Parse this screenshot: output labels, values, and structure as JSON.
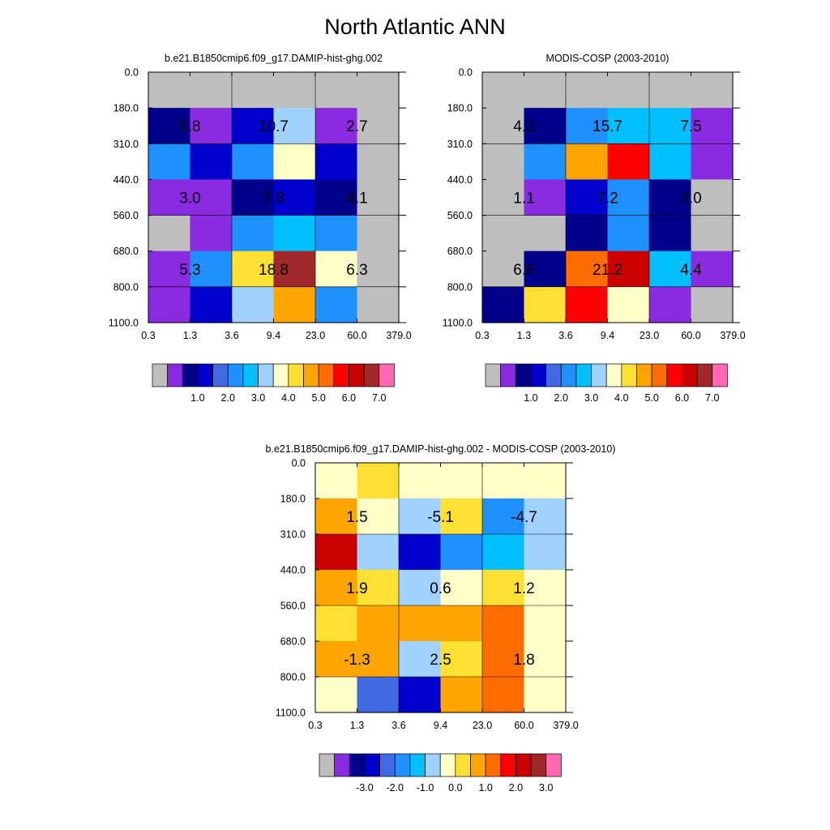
{
  "title": "North Atlantic ANN",
  "chart_data": [
    {
      "type": "heatmap",
      "title": "b.e21.B1850cmip6.f09_g17.DAMIP-hist-ghg.002",
      "xticks": [
        "0.3",
        "1.3",
        "3.6",
        "9.4",
        "23.0",
        "60.0",
        "379.0"
      ],
      "yticks": [
        "0.0",
        "180.0",
        "310.0",
        "440.0",
        "560.0",
        "680.0",
        "800.0",
        "1100.0"
      ],
      "colorbar_labels": [
        "1.0",
        "2.0",
        "3.0",
        "4.0",
        "5.0",
        "6.0",
        "7.0"
      ],
      "grid": [
        [
          0,
          0,
          0,
          0,
          0,
          0
        ],
        [
          2,
          1,
          3,
          7,
          1,
          0
        ],
        [
          5,
          3,
          5,
          8,
          3,
          0
        ],
        [
          1,
          1,
          2,
          3,
          2,
          0
        ],
        [
          0,
          1,
          5,
          6,
          5,
          0
        ],
        [
          1,
          5,
          9,
          14,
          8,
          0
        ],
        [
          1,
          3,
          7,
          10,
          5,
          0
        ]
      ],
      "labels": [
        {
          "text": "5.8",
          "col": 1,
          "row": 1.5
        },
        {
          "text": "10.7",
          "col": 3,
          "row": 1.5
        },
        {
          "text": "2.7",
          "col": 5,
          "row": 1.5
        },
        {
          "text": "3.0",
          "col": 1,
          "row": 3.5
        },
        {
          "text": "7.8",
          "col": 3,
          "row": 3.5
        },
        {
          "text": "4.1",
          "col": 5,
          "row": 3.5
        },
        {
          "text": "5.3",
          "col": 1,
          "row": 5.5
        },
        {
          "text": "18.8",
          "col": 3,
          "row": 5.5
        },
        {
          "text": "6.3",
          "col": 5,
          "row": 5.5
        }
      ]
    },
    {
      "type": "heatmap",
      "title": "MODIS-COSP (2003-2010)",
      "xticks": [
        "0.3",
        "1.3",
        "3.6",
        "9.4",
        "23.0",
        "60.0",
        "379.0"
      ],
      "yticks": [
        "0.0",
        "180.0",
        "310.0",
        "440.0",
        "560.0",
        "680.0",
        "800.0",
        "1100.0"
      ],
      "colorbar_labels": [
        "1.0",
        "2.0",
        "3.0",
        "4.0",
        "5.0",
        "6.0",
        "7.0"
      ],
      "grid": [
        [
          0,
          0,
          0,
          0,
          0,
          0
        ],
        [
          0,
          2,
          5,
          6,
          6,
          1
        ],
        [
          0,
          5,
          10,
          12,
          6,
          1
        ],
        [
          0,
          1,
          3,
          5,
          2,
          0
        ],
        [
          0,
          0,
          2,
          5,
          2,
          0
        ],
        [
          0,
          2,
          11,
          13,
          6,
          1
        ],
        [
          2,
          9,
          12,
          8,
          1,
          0
        ]
      ],
      "labels": [
        {
          "text": "4.2",
          "col": 1,
          "row": 1.5
        },
        {
          "text": "15.7",
          "col": 3,
          "row": 1.5
        },
        {
          "text": "7.5",
          "col": 5,
          "row": 1.5
        },
        {
          "text": "1.1",
          "col": 1,
          "row": 3.5
        },
        {
          "text": "7.2",
          "col": 3,
          "row": 3.5
        },
        {
          "text": "3.0",
          "col": 5,
          "row": 3.5
        },
        {
          "text": "6.6",
          "col": 1,
          "row": 5.5
        },
        {
          "text": "21.2",
          "col": 3,
          "row": 5.5
        },
        {
          "text": "4.4",
          "col": 5,
          "row": 5.5
        }
      ]
    },
    {
      "type": "heatmap",
      "title": "b.e21.B1850cmip6.f09_g17.DAMIP-hist-ghg.002 - MODIS-COSP (2003-2010)",
      "xticks": [
        "0.3",
        "1.3",
        "3.6",
        "9.4",
        "23.0",
        "60.0",
        "379.0"
      ],
      "yticks": [
        "0.0",
        "180.0",
        "310.0",
        "440.0",
        "560.0",
        "680.0",
        "800.0",
        "1100.0"
      ],
      "colorbar_labels": [
        "-3.0",
        "-2.0",
        "-1.0",
        "0.0",
        "1.0",
        "2.0",
        "3.0"
      ],
      "grid": [
        [
          8,
          9,
          8,
          8,
          8,
          8
        ],
        [
          10,
          8,
          7,
          9,
          5,
          7
        ],
        [
          13,
          7,
          3,
          5,
          6,
          7
        ],
        [
          10,
          9,
          7,
          8,
          9,
          8
        ],
        [
          9,
          10,
          10,
          10,
          11,
          8
        ],
        [
          10,
          10,
          7,
          9,
          11,
          8
        ],
        [
          8,
          4,
          3,
          10,
          11,
          8
        ]
      ],
      "labels": [
        {
          "text": "1.5",
          "col": 1,
          "row": 1.5
        },
        {
          "text": "-5.1",
          "col": 3,
          "row": 1.5
        },
        {
          "text": "-4.7",
          "col": 5,
          "row": 1.5
        },
        {
          "text": "1.9",
          "col": 1,
          "row": 3.5
        },
        {
          "text": "0.6",
          "col": 3,
          "row": 3.5
        },
        {
          "text": "1.2",
          "col": 5,
          "row": 3.5
        },
        {
          "text": "-1.3",
          "col": 1,
          "row": 5.5
        },
        {
          "text": "2.5",
          "col": 3,
          "row": 5.5
        },
        {
          "text": "1.8",
          "col": 5,
          "row": 5.5
        }
      ]
    }
  ],
  "palette": [
    "#bebebe",
    "#8a2be2",
    "#00008b",
    "#0000cd",
    "#4169e1",
    "#1e90ff",
    "#00bfff",
    "#a0d2ff",
    "#ffffc8",
    "#ffe032",
    "#ffa500",
    "#ff6c00",
    "#ff0000",
    "#c80000",
    "#a02828",
    "#ff69b4"
  ],
  "nodata_color": "#bebebe"
}
